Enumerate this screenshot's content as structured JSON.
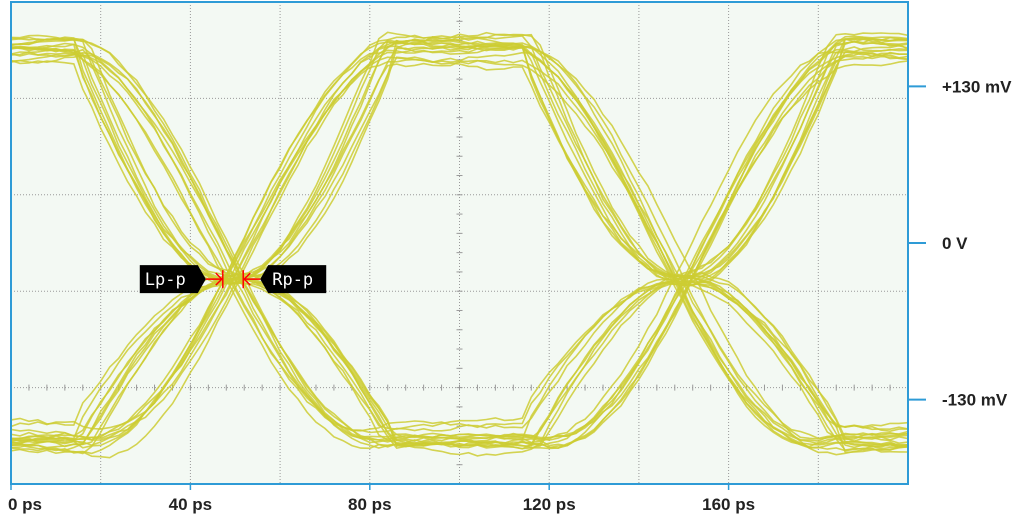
{
  "chart_data": {
    "type": "eye-diagram",
    "x_unit": "ps",
    "y_unit": "mV",
    "xlim": [
      0,
      200
    ],
    "ylim": [
      -200,
      200
    ],
    "x_ticks": [
      {
        "value": 0,
        "label": "0 ps"
      },
      {
        "value": 40,
        "label": "40 ps"
      },
      {
        "value": 80,
        "label": "80 ps"
      },
      {
        "value": 120,
        "label": "120 ps"
      },
      {
        "value": 160,
        "label": "160 ps"
      }
    ],
    "y_ticks": [
      {
        "value": 130,
        "label": "+130 mV"
      },
      {
        "value": 0,
        "label": "0 V"
      },
      {
        "value": -130,
        "label": "-130 mV"
      }
    ],
    "levels_mv": {
      "high": 160,
      "low": -160
    },
    "crossings_ps": [
      50,
      150
    ],
    "crossing_level_mv": -30,
    "transition_ps": 35,
    "grid": true,
    "markers": [
      {
        "label": "Lp-p",
        "side": "left",
        "x": 47,
        "y": -30
      },
      {
        "label": "Rp-p",
        "side": "right",
        "x": 52,
        "y": -30
      }
    ],
    "colors": {
      "trace": "#cccc33",
      "grid": "#999999",
      "frame": "#2e9bd6",
      "background": "#f3f9f3",
      "marker": "#ff0000"
    }
  }
}
